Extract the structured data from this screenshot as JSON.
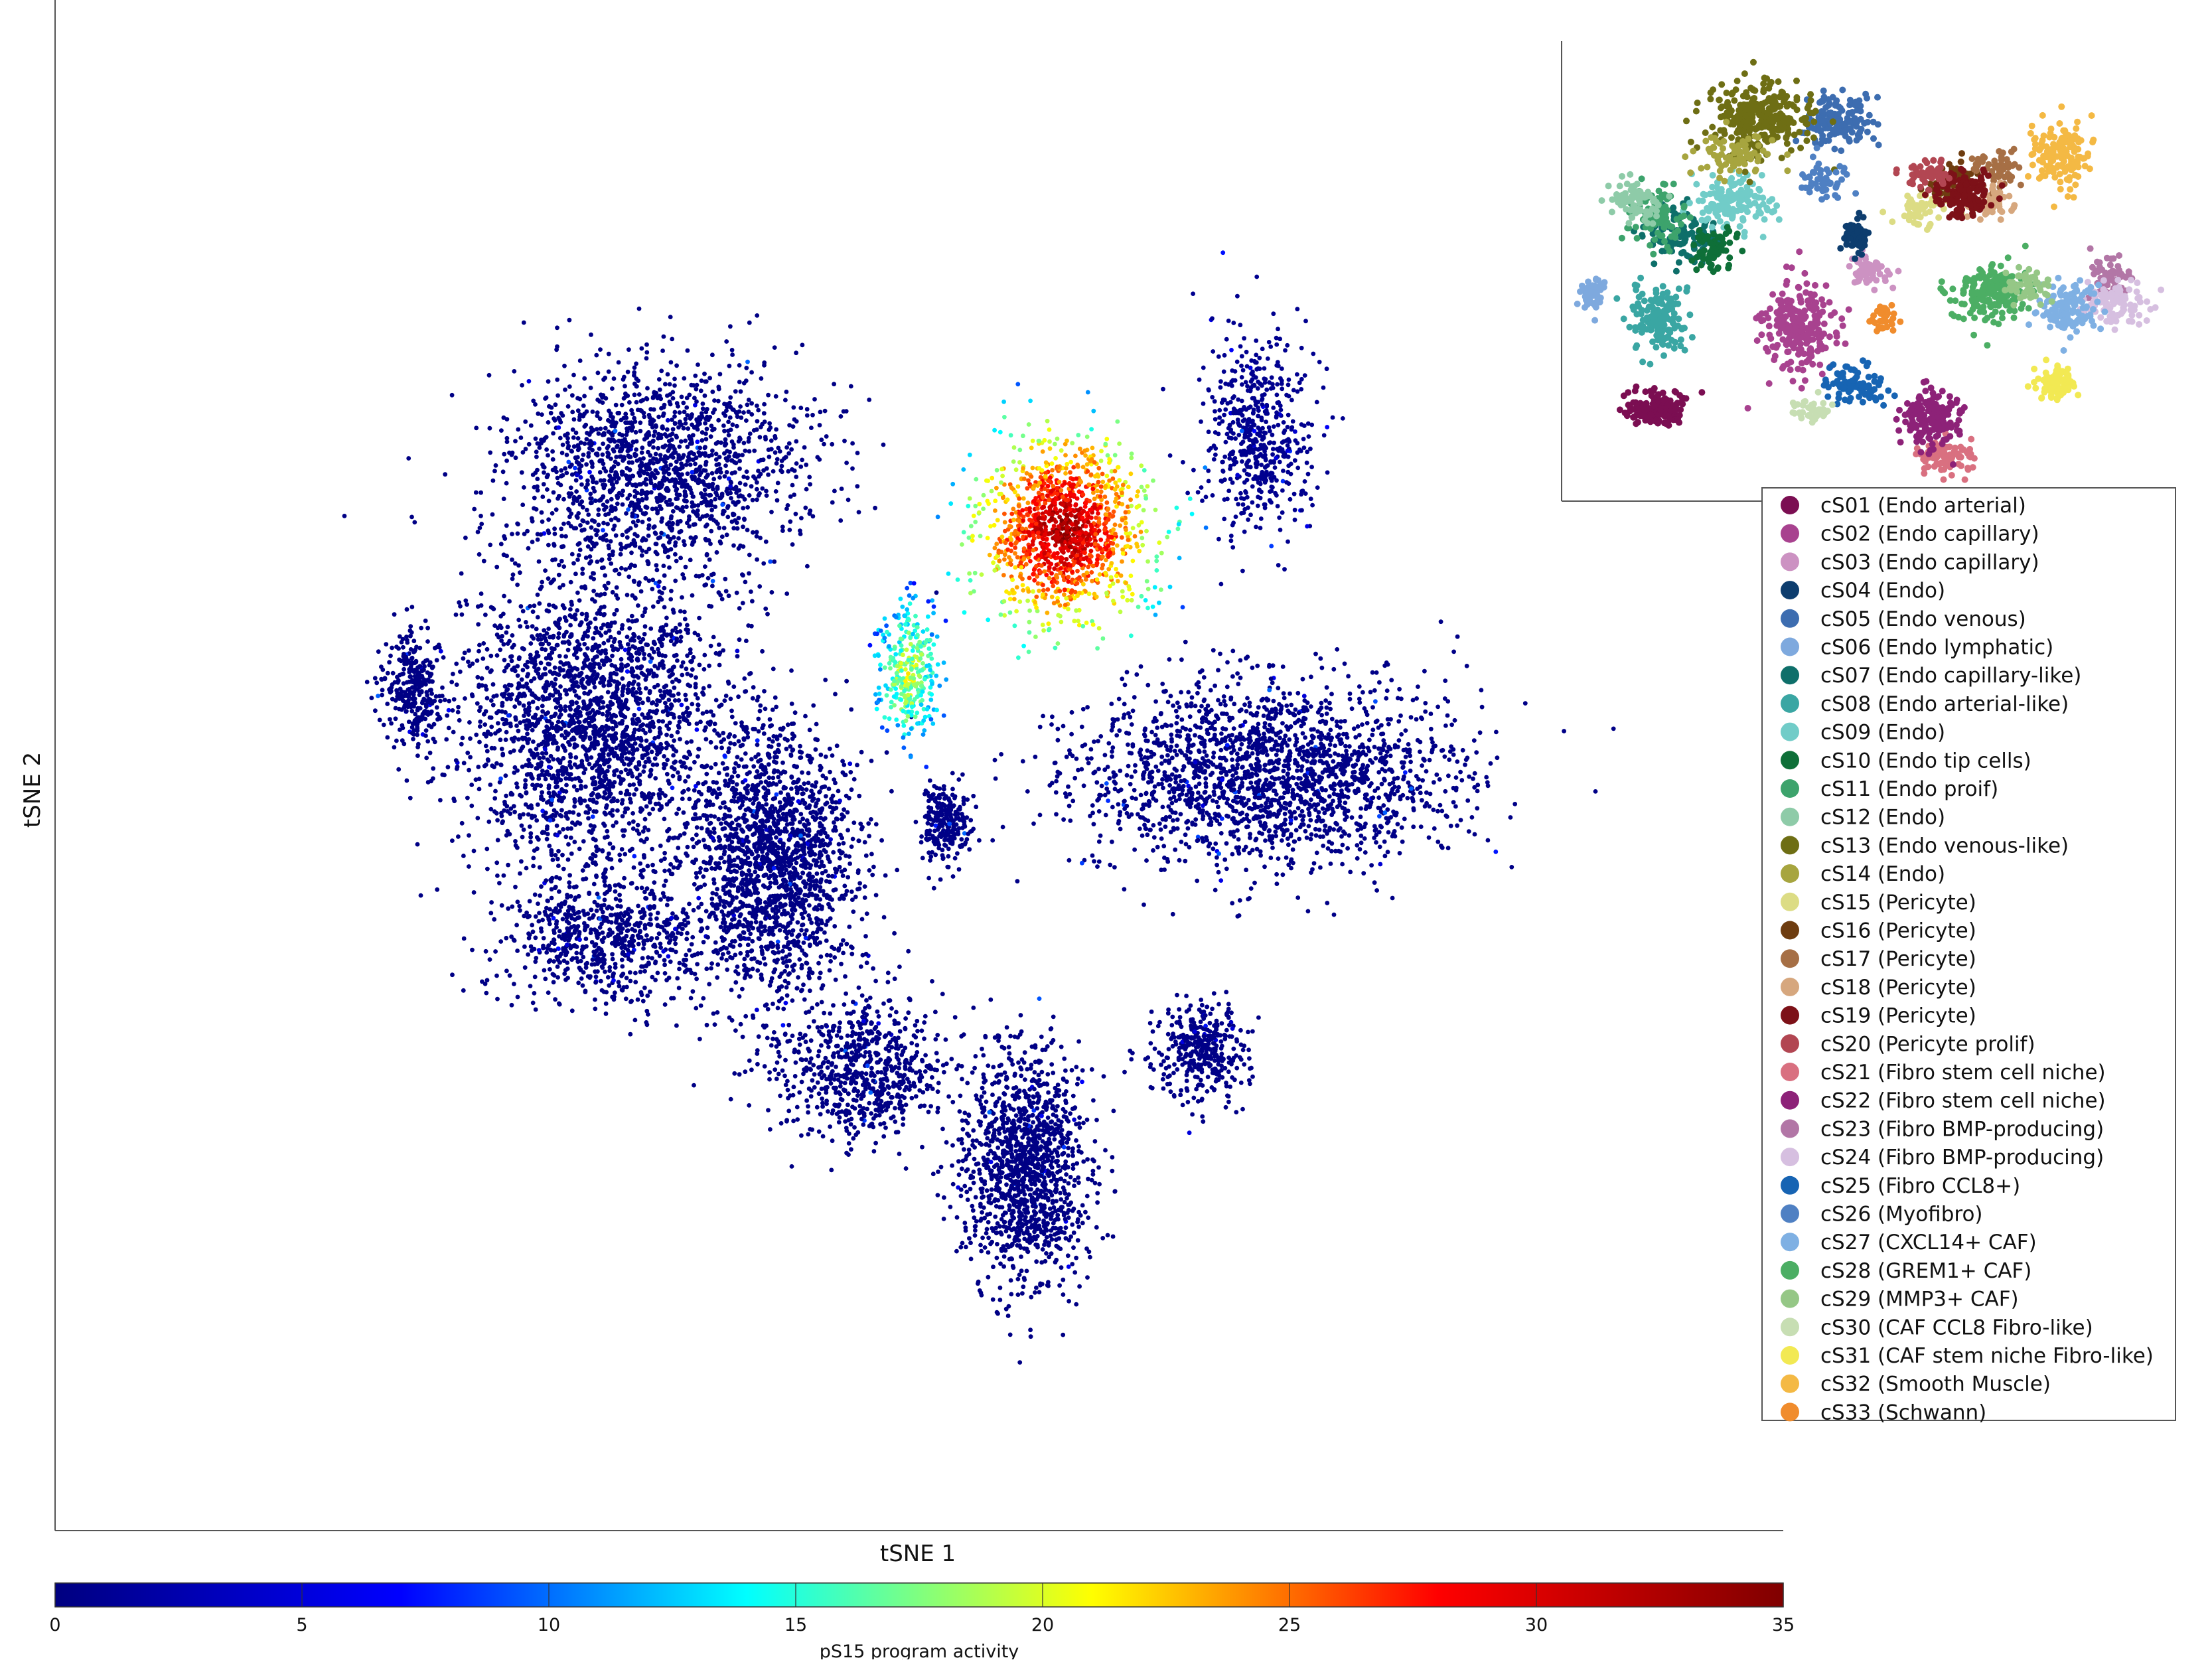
{
  "chart_data": [
    {
      "type": "scatter",
      "title": "",
      "xlabel": "tSNE 1",
      "ylabel": "tSNE 2",
      "grid": false,
      "color_scale": {
        "label": "pS15 program activity",
        "range": [
          0,
          35
        ],
        "ticks": [
          "0",
          "5",
          "10",
          "15",
          "20",
          "25",
          "30",
          "35"
        ],
        "colormap": "jet",
        "colors": [
          "#000080",
          "#0000ff",
          "#00ffff",
          "#ffff00",
          "#ff0000",
          "#800000"
        ]
      },
      "clusters": [
        {
          "id": "left-lobe",
          "cx": -88.6,
          "cy": 11.2,
          "sx": 4.8,
          "sy": 7.7,
          "n": 300,
          "activity": 0.3
        },
        {
          "id": "upper-left-large",
          "cx": -46.2,
          "cy": 42.8,
          "sx": 24.0,
          "sy": 14.4,
          "n": 1600,
          "activity": 0.3
        },
        {
          "id": "mid-left-large",
          "cx": -57.9,
          "cy": 6.5,
          "sx": 20.6,
          "sy": 19.6,
          "n": 2200,
          "activity": 0.3
        },
        {
          "id": "lower-left-arm",
          "cx": -55.2,
          "cy": -25.5,
          "sx": 17.1,
          "sy": 8.6,
          "n": 700,
          "activity": 0.3
        },
        {
          "id": "mid-center-block",
          "cx": -25.9,
          "cy": -14.3,
          "sx": 13.7,
          "sy": 18.2,
          "n": 1800,
          "activity": 0.3
        },
        {
          "id": "small-center-cluster",
          "cx": 4.6,
          "cy": -8.9,
          "sx": 3.8,
          "sy": 4.8,
          "n": 250,
          "activity": 0.4
        },
        {
          "id": "high-activity-cluster",
          "cx": 25.3,
          "cy": 33.9,
          "sx": 13.0,
          "sy": 11.5,
          "n": 1300,
          "activity": 27
        },
        {
          "id": "mixed-activity-cluster",
          "cx": -1.8,
          "cy": 12.9,
          "sx": 5.1,
          "sy": 9.1,
          "n": 320,
          "activity": 16
        },
        {
          "id": "upper-right-cluster",
          "cx": 59.6,
          "cy": 47.7,
          "sx": 8.6,
          "sy": 12.4,
          "n": 550,
          "activity": 0.8
        },
        {
          "id": "right-large-band",
          "cx": 60.6,
          "cy": -1.4,
          "sx": 29.5,
          "sy": 12.0,
          "n": 2000,
          "activity": 0.4
        },
        {
          "id": "bottom-left-arm",
          "cx": -9.7,
          "cy": -44.8,
          "sx": 13.7,
          "sy": 8.6,
          "n": 700,
          "activity": 0.3
        },
        {
          "id": "bottom-center-cluster",
          "cx": 18.5,
          "cy": -58.2,
          "sx": 9.6,
          "sy": 15.3,
          "n": 1300,
          "activity": 0.3
        },
        {
          "id": "bottom-right-cluster",
          "cx": 49.3,
          "cy": -41.8,
          "sx": 7.2,
          "sy": 6.2,
          "n": 380,
          "activity": 0.4
        }
      ]
    },
    {
      "type": "scatter",
      "title": "",
      "legend_placement": "right",
      "clusters": [
        {
          "id": "cS01",
          "name": "cS01 (Endo arterial)",
          "color": "#7b0e52",
          "cx": 0.155,
          "cy": 0.8,
          "sx": 0.04,
          "sy": 0.03,
          "n": 160
        },
        {
          "id": "cS02",
          "name": "cS02 (Endo capillary)",
          "color": "#a8428f",
          "cx": 0.39,
          "cy": 0.62,
          "sx": 0.05,
          "sy": 0.08,
          "n": 230
        },
        {
          "id": "cS03",
          "name": "cS03 (Endo capillary)",
          "color": "#cc92c2",
          "cx": 0.5,
          "cy": 0.5,
          "sx": 0.03,
          "sy": 0.03,
          "n": 60
        },
        {
          "id": "cS04",
          "name": "cS04 (Endo)",
          "color": "#0d3d6e",
          "cx": 0.48,
          "cy": 0.42,
          "sx": 0.025,
          "sy": 0.03,
          "n": 60
        },
        {
          "id": "cS05",
          "name": "cS05 (Endo venous)",
          "color": "#3d6db0",
          "cx": 0.45,
          "cy": 0.17,
          "sx": 0.05,
          "sy": 0.05,
          "n": 140
        },
        {
          "id": "cS06",
          "name": "cS06 (Endo lymphatic)",
          "color": "#7ea9de",
          "cx": 0.05,
          "cy": 0.55,
          "sx": 0.02,
          "sy": 0.03,
          "n": 60
        },
        {
          "id": "cS07",
          "name": "cS07 (Endo capillary-like)",
          "color": "#0e6f6a",
          "cx": 0.2,
          "cy": 0.42,
          "sx": 0.05,
          "sy": 0.05,
          "n": 110
        },
        {
          "id": "cS08",
          "name": "cS08 (Endo arterial-like)",
          "color": "#3aa6a3",
          "cx": 0.16,
          "cy": 0.6,
          "sx": 0.04,
          "sy": 0.06,
          "n": 150
        },
        {
          "id": "cS09",
          "name": "cS09 (Endo)",
          "color": "#71ccc8",
          "cx": 0.28,
          "cy": 0.35,
          "sx": 0.05,
          "sy": 0.05,
          "n": 140
        },
        {
          "id": "cS10",
          "name": "cS10 (Endo tip cells)",
          "color": "#0e6f38",
          "cx": 0.25,
          "cy": 0.45,
          "sx": 0.03,
          "sy": 0.04,
          "n": 60
        },
        {
          "id": "cS11",
          "name": "cS11 (Endo proif)",
          "color": "#3da36c",
          "cx": 0.15,
          "cy": 0.38,
          "sx": 0.04,
          "sy": 0.05,
          "n": 100
        },
        {
          "id": "cS12",
          "name": "cS12 (Endo)",
          "color": "#8ecba8",
          "cx": 0.12,
          "cy": 0.35,
          "sx": 0.04,
          "sy": 0.04,
          "n": 80
        },
        {
          "id": "cS13",
          "name": "cS13 (Endo venous-like)",
          "color": "#6e6e14",
          "cx": 0.32,
          "cy": 0.17,
          "sx": 0.07,
          "sy": 0.07,
          "n": 300
        },
        {
          "id": "cS14",
          "name": "cS14 (Endo)",
          "color": "#a7a53f",
          "cx": 0.28,
          "cy": 0.25,
          "sx": 0.05,
          "sy": 0.04,
          "n": 80
        },
        {
          "id": "cS15",
          "name": "cS15 (Pericyte)",
          "color": "#dcdc84",
          "cx": 0.6,
          "cy": 0.36,
          "sx": 0.04,
          "sy": 0.04,
          "n": 60
        },
        {
          "id": "cS16",
          "name": "cS16 (Pericyte)",
          "color": "#6e3d10",
          "cx": 0.64,
          "cy": 0.3,
          "sx": 0.04,
          "sy": 0.04,
          "n": 60
        },
        {
          "id": "cS17",
          "name": "cS17 (Pericyte)",
          "color": "#a66f45",
          "cx": 0.72,
          "cy": 0.28,
          "sx": 0.04,
          "sy": 0.04,
          "n": 60
        },
        {
          "id": "cS18",
          "name": "cS18 (Pericyte)",
          "color": "#d6a77e",
          "cx": 0.7,
          "cy": 0.35,
          "sx": 0.04,
          "sy": 0.03,
          "n": 50
        },
        {
          "id": "cS19",
          "name": "cS19 (Pericyte)",
          "color": "#7d1118",
          "cx": 0.66,
          "cy": 0.33,
          "sx": 0.04,
          "sy": 0.04,
          "n": 130
        },
        {
          "id": "cS20",
          "name": "cS20 (Pericyte prolif)",
          "color": "#b24652",
          "cx": 0.6,
          "cy": 0.29,
          "sx": 0.03,
          "sy": 0.03,
          "n": 60
        },
        {
          "id": "cS21",
          "name": "cS21 (Fibro stem cell niche)",
          "color": "#d97080",
          "cx": 0.63,
          "cy": 0.9,
          "sx": 0.04,
          "sy": 0.03,
          "n": 90
        },
        {
          "id": "cS22",
          "name": "cS22 (Fibro stem cell niche)",
          "color": "#8d2278",
          "cx": 0.61,
          "cy": 0.82,
          "sx": 0.04,
          "sy": 0.05,
          "n": 170
        },
        {
          "id": "cS23",
          "name": "cS23 (Fibro BMP-producing)",
          "color": "#b276a6",
          "cx": 0.9,
          "cy": 0.52,
          "sx": 0.03,
          "sy": 0.04,
          "n": 60
        },
        {
          "id": "cS24",
          "name": "cS24 (Fibro BMP-producing)",
          "color": "#d6bfe0",
          "cx": 0.91,
          "cy": 0.57,
          "sx": 0.04,
          "sy": 0.04,
          "n": 100
        },
        {
          "id": "cS25",
          "name": "cS25 (Fibro CCL8+)",
          "color": "#1764b3",
          "cx": 0.48,
          "cy": 0.75,
          "sx": 0.04,
          "sy": 0.04,
          "n": 90
        },
        {
          "id": "cS26",
          "name": "cS26 (Myofibro)",
          "color": "#4f80c3",
          "cx": 0.43,
          "cy": 0.3,
          "sx": 0.03,
          "sy": 0.04,
          "n": 50
        },
        {
          "id": "cS27",
          "name": "cS27 (CXCL14+ CAF)",
          "color": "#7fb0e3",
          "cx": 0.83,
          "cy": 0.58,
          "sx": 0.04,
          "sy": 0.05,
          "n": 130
        },
        {
          "id": "cS28",
          "name": "cS28 (GREM1+ CAF)",
          "color": "#4cae64",
          "cx": 0.7,
          "cy": 0.55,
          "sx": 0.05,
          "sy": 0.05,
          "n": 190
        },
        {
          "id": "cS29",
          "name": "cS29 (MMP3+ CAF)",
          "color": "#95c786",
          "cx": 0.76,
          "cy": 0.53,
          "sx": 0.03,
          "sy": 0.03,
          "n": 60
        },
        {
          "id": "cS30",
          "name": "cS30 (CAF CCL8 Fibro-like)",
          "color": "#c7deb3",
          "cx": 0.41,
          "cy": 0.8,
          "sx": 0.03,
          "sy": 0.02,
          "n": 40
        },
        {
          "id": "cS31",
          "name": "cS31 (CAF stem niche Fibro-like)",
          "color": "#f2e953",
          "cx": 0.81,
          "cy": 0.74,
          "sx": 0.03,
          "sy": 0.03,
          "n": 90
        },
        {
          "id": "cS32",
          "name": "cS32 (Smooth Muscle)",
          "color": "#f4b944",
          "cx": 0.82,
          "cy": 0.25,
          "sx": 0.04,
          "sy": 0.06,
          "n": 150
        },
        {
          "id": "cS33",
          "name": "cS33 (Schwann)",
          "color": "#f08c2d",
          "cx": 0.53,
          "cy": 0.6,
          "sx": 0.015,
          "sy": 0.03,
          "n": 40
        }
      ]
    }
  ]
}
